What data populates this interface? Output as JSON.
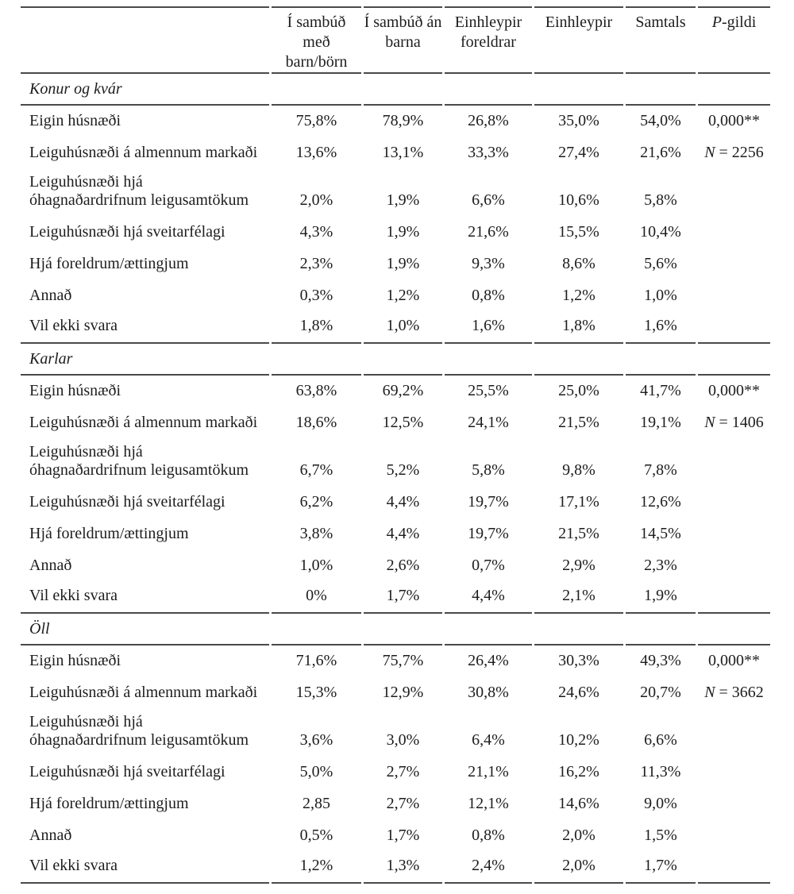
{
  "header": {
    "cols": [
      "Í sambúð með barn/börn",
      "Í sambúð án barna",
      "Einhleypir foreldrar",
      "Einhleypir",
      "Samtals"
    ],
    "p_italic": "P",
    "p_rest": "-gildi"
  },
  "sections": [
    {
      "title": "Konur og kvár",
      "rows": [
        {
          "label": "Eigin húsnæði",
          "values": [
            "75,8%",
            "78,9%",
            "26,8%",
            "35,0%",
            "54,0%"
          ],
          "extra": {
            "text": "0,000**"
          }
        },
        {
          "label": "Leiguhúsnæði á almennum markaði",
          "values": [
            "13,6%",
            "13,1%",
            "33,3%",
            "27,4%",
            "21,6%"
          ],
          "extra": {
            "italic": "N",
            "text": " = 2256"
          }
        },
        {
          "label": "Leiguhúsnæði hjá\nóhagnaðardrifnum leigusamtökum",
          "values": [
            "2,0%",
            "1,9%",
            "6,6%",
            "10,6%",
            "5,8%"
          ],
          "tall": true
        },
        {
          "label": "Leiguhúsnæði hjá sveitarfélagi",
          "values": [
            "4,3%",
            "1,9%",
            "21,6%",
            "15,5%",
            "10,4%"
          ]
        },
        {
          "label": "Hjá foreldrum/ættingjum",
          "values": [
            "2,3%",
            "1,9%",
            "9,3%",
            "8,6%",
            "5,6%"
          ]
        },
        {
          "label": "Annað",
          "values": [
            "0,3%",
            "1,2%",
            "0,8%",
            "1,2%",
            "1,0%"
          ]
        },
        {
          "label": "Vil ekki svara",
          "values": [
            "1,8%",
            "1,0%",
            "1,6%",
            "1,8%",
            "1,6%"
          ]
        }
      ]
    },
    {
      "title": "Karlar",
      "rows": [
        {
          "label": "Eigin húsnæði",
          "values": [
            "63,8%",
            "69,2%",
            "25,5%",
            "25,0%",
            "41,7%"
          ],
          "extra": {
            "text": "0,000**"
          }
        },
        {
          "label": "Leiguhúsnæði á almennum markaði",
          "values": [
            "18,6%",
            "12,5%",
            "24,1%",
            "21,5%",
            "19,1%"
          ],
          "extra": {
            "italic": "N",
            "text": " = 1406"
          }
        },
        {
          "label": "Leiguhúsnæði hjá\nóhagnaðardrifnum leigusamtökum",
          "values": [
            "6,7%",
            "5,2%",
            "5,8%",
            "9,8%",
            "7,8%"
          ],
          "tall": true
        },
        {
          "label": "Leiguhúsnæði hjá sveitarfélagi",
          "values": [
            "6,2%",
            "4,4%",
            "19,7%",
            "17,1%",
            "12,6%"
          ]
        },
        {
          "label": "Hjá foreldrum/ættingjum",
          "values": [
            "3,8%",
            "4,4%",
            "19,7%",
            "21,5%",
            "14,5%"
          ]
        },
        {
          "label": "Annað",
          "values": [
            "1,0%",
            "2,6%",
            "0,7%",
            "2,9%",
            "2,3%"
          ]
        },
        {
          "label": "Vil ekki svara",
          "values": [
            "0%",
            "1,7%",
            "4,4%",
            "2,1%",
            "1,9%"
          ]
        }
      ]
    },
    {
      "title": "Öll",
      "rows": [
        {
          "label": "Eigin húsnæði",
          "values": [
            "71,6%",
            "75,7%",
            "26,4%",
            "30,3%",
            "49,3%"
          ],
          "extra": {
            "text": "0,000**"
          }
        },
        {
          "label": "Leiguhúsnæði á almennum markaði",
          "values": [
            "15,3%",
            "12,9%",
            "30,8%",
            "24,6%",
            "20,7%"
          ],
          "extra": {
            "italic": "N",
            "text": " = 3662"
          }
        },
        {
          "label": "Leiguhúsnæði hjá\nóhagnaðardrifnum leigusamtökum",
          "values": [
            "3,6%",
            "3,0%",
            "6,4%",
            "10,2%",
            "6,6%"
          ],
          "tall": true
        },
        {
          "label": "Leiguhúsnæði hjá sveitarfélagi",
          "values": [
            "5,0%",
            "2,7%",
            "21,1%",
            "16,2%",
            "11,3%"
          ]
        },
        {
          "label": "Hjá foreldrum/ættingjum",
          "values": [
            "2,85",
            "2,7%",
            "12,1%",
            "14,6%",
            "9,0%"
          ]
        },
        {
          "label": "Annað",
          "values": [
            "0,5%",
            "1,7%",
            "0,8%",
            "2,0%",
            "1,5%"
          ]
        },
        {
          "label": "Vil ekki svara",
          "values": [
            "1,2%",
            "1,3%",
            "2,4%",
            "2,0%",
            "1,7%"
          ]
        }
      ]
    }
  ]
}
